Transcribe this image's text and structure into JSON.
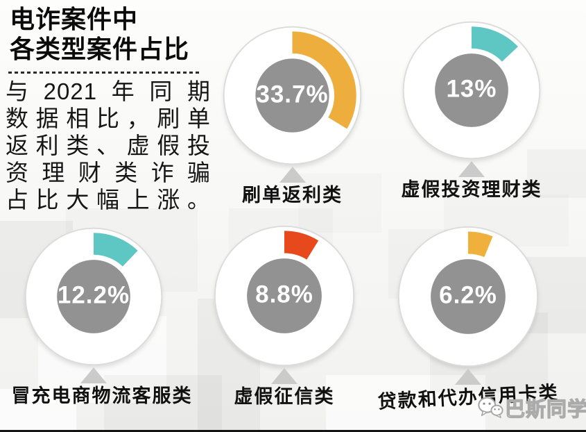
{
  "header": {
    "title_line1": "电诈案件中",
    "title_line2": "各类型案件占比",
    "description": "与2021年同期数据相比，刷单返利类、虚假投资理财类诈骗占比大幅上涨。",
    "description_lines": [
      "与2021年同期",
      "数据相比，刷单",
      "返利类、虚假投",
      "资理财类诈骗",
      "占比大幅上涨。"
    ]
  },
  "watermark": {
    "text": "巴斯同学",
    "icon": "wechat-chat-bubbles-icon"
  },
  "colors": {
    "center_circle": "#929292",
    "outer_ring_stroke": "#dbdbdb",
    "outer_ring_fill": "#ffffff",
    "pointer": "#cbcbcb",
    "value_text": "#ffffff"
  },
  "chart_data": {
    "type": "pie",
    "subtype": "gauge-donut-set",
    "title": "电诈案件中各类型案件占比",
    "unit": "%",
    "start_angle_deg": 0,
    "full_scale": 100,
    "categories": [
      "刷单返利类",
      "虚假投资理财类",
      "冒充电商物流客服类",
      "虚假征信类",
      "贷款和代办信用卡类"
    ],
    "values": [
      33.7,
      13,
      12.2,
      8.8,
      6.2
    ],
    "items": [
      {
        "label": "刷单返利类",
        "value": 33.7,
        "display": "33.7%",
        "color": "#edae3d"
      },
      {
        "label": "虚假投资理财类",
        "value": 13,
        "display": "13%",
        "color": "#5fc7c3"
      },
      {
        "label": "冒充电商物流客服类",
        "value": 12.2,
        "display": "12.2%",
        "color": "#5fc7c3"
      },
      {
        "label": "虚假征信类",
        "value": 8.8,
        "display": "8.8%",
        "color": "#e8491c"
      },
      {
        "label": "贷款和代办信用卡类",
        "value": 6.2,
        "display": "6.2%",
        "color": "#f0b13c"
      }
    ]
  }
}
